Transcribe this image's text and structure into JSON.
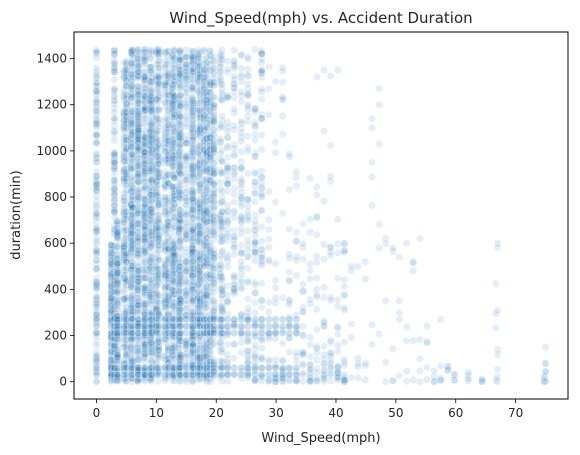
{
  "chart_data": {
    "type": "scatter",
    "title": "Wind_Speed(mph) vs. Accident Duration",
    "xlabel": "Wind_Speed(mph)",
    "ylabel": "duration(min)",
    "xlim": [
      -3.75,
      78.75
    ],
    "ylim": [
      -75,
      1515
    ],
    "xticks": [
      0,
      10,
      20,
      30,
      40,
      50,
      60,
      70
    ],
    "yticks": [
      0,
      200,
      400,
      600,
      800,
      1000,
      1200,
      1400
    ],
    "grid": false,
    "legend": "none",
    "marker_color": "#1f77b4",
    "marker_alpha": 0.12,
    "series": [
      {
        "x_columns": [
          0,
          2.5,
          3,
          3.5,
          4.6,
          5,
          5.8,
          6,
          6.9,
          7,
          8,
          8.1,
          9,
          9.2,
          10,
          10.4,
          11.5,
          12,
          12.7,
          13,
          13.8,
          14,
          15,
          16,
          16.1,
          17,
          17.3,
          18,
          18.4,
          19,
          19.6,
          20.7,
          21,
          21.9,
          23,
          24.2,
          25.3,
          26.5,
          27.6,
          28.8,
          29.9,
          31.1,
          32.2,
          33.4,
          34.5,
          35.7,
          36.8,
          38,
          39.1,
          40.3,
          41.4,
          42.6,
          43.7,
          44.9,
          46,
          47.2,
          48.3,
          49.5,
          50.6,
          51.8,
          52.9,
          54,
          55.2,
          56.4,
          57.5,
          58.7,
          59.8,
          62.1,
          64.4,
          66.7,
          67,
          74.8,
          75
        ],
        "y_extent_max": [
          1440,
          600,
          1440,
          700,
          1440,
          1440,
          1440,
          1440,
          1440,
          1440,
          1440,
          1440,
          1440,
          1440,
          1440,
          1440,
          1440,
          1440,
          1440,
          1440,
          1440,
          1440,
          1440,
          1440,
          1440,
          1440,
          1440,
          1440,
          1440,
          1440,
          1420,
          1440,
          1440,
          1420,
          1440,
          1430,
          1420,
          1200,
          1440,
          1380,
          1100,
          1360,
          1000,
          950,
          940,
          900,
          860,
          1350,
          1350,
          720,
          620,
          500,
          500,
          580,
          1140,
          1270,
          620,
          620,
          600,
          360,
          620,
          270,
          360,
          50,
          270,
          80,
          40,
          40,
          40,
          600,
          310,
          150,
          150
        ],
        "bands": [
          30,
          60,
          210,
          240,
          270
        ],
        "outliers": [
          [
            46,
            1140
          ],
          [
            46,
            1100
          ],
          [
            46,
            950
          ],
          [
            47.2,
            1270
          ],
          [
            47.2,
            1200
          ],
          [
            48.3,
            620
          ],
          [
            49.5,
            580
          ],
          [
            51.8,
            600
          ],
          [
            52.9,
            480
          ],
          [
            54,
            620
          ],
          [
            57.5,
            270
          ],
          [
            67,
            600
          ],
          [
            67,
            580
          ],
          [
            67,
            310
          ],
          [
            67,
            140
          ],
          [
            75,
            150
          ],
          [
            75,
            80
          ],
          [
            40.3,
            1350
          ],
          [
            38,
            1350
          ],
          [
            36.8,
            1320
          ],
          [
            31.1,
            1360
          ],
          [
            29.9,
            1300
          ],
          [
            27.6,
            1420
          ],
          [
            26.5,
            1440
          ],
          [
            41.4,
            600
          ],
          [
            42.6,
            500
          ],
          [
            43.7,
            500
          ],
          [
            44.9,
            520
          ],
          [
            50.6,
            350
          ],
          [
            55.2,
            240
          ]
        ]
      }
    ]
  }
}
